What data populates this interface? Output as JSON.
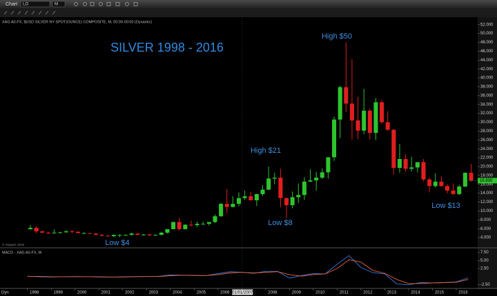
{
  "toolbar": {
    "title": "Chart",
    "symbol": "LO",
    "interval": "M"
  },
  "footer": "Dyn",
  "chart_data": {
    "type": "candlestick",
    "header": "XAG A0-FX, $USD SILVER NY SPOT(OUNCE) COMPOSITE, M, 00:00-00:00 (Dynamic)",
    "title": "SILVER 1998 - 2016",
    "copyright": "© eSignal, 2016",
    "annotations": [
      "High $50",
      "High $21",
      "Low $8",
      "Low $13",
      "Low $4"
    ],
    "last_value_label": "16.830",
    "up_color": "#2ec42e",
    "down_color": "#e01e1e",
    "xlim": [
      1996.85,
      2016.9
    ],
    "xticks": [
      1998,
      1999,
      2000,
      2001,
      2002,
      2003,
      2004,
      2005,
      2006,
      {
        "value": 2007,
        "label": "01/01/2007"
      },
      2008,
      2009,
      2010,
      2011,
      2012,
      2013,
      2014,
      2015,
      2016
    ],
    "ylim": [
      2,
      53.2
    ],
    "yticks": [
      {
        "value": 4,
        "label": "4.000"
      },
      {
        "value": 6,
        "label": "6.000"
      },
      {
        "value": 8,
        "label": "8.000"
      },
      {
        "value": 10,
        "label": "10.000"
      },
      {
        "value": 12,
        "label": "12.000"
      },
      {
        "value": 14,
        "label": "14.000"
      },
      {
        "value": 16,
        "label": "16.000"
      },
      {
        "value": 18,
        "label": "18.000"
      },
      {
        "value": 20,
        "label": "20.000"
      },
      {
        "value": 22,
        "label": "22.000"
      },
      {
        "value": 24,
        "label": "24.000"
      },
      {
        "value": 26,
        "label": "26.000"
      },
      {
        "value": 28,
        "label": "28.000"
      },
      {
        "value": 30,
        "label": "30.000"
      },
      {
        "value": 32,
        "label": "32.000"
      },
      {
        "value": 34,
        "label": "34.000"
      },
      {
        "value": 36,
        "label": "36.000"
      },
      {
        "value": 38,
        "label": "38.000"
      },
      {
        "value": 40,
        "label": "40.000"
      },
      {
        "value": 42,
        "label": "42.000"
      },
      {
        "value": 44,
        "label": "44.000"
      },
      {
        "value": 46,
        "label": "46.000"
      },
      {
        "value": 48,
        "label": "48.000"
      },
      {
        "value": 50,
        "label": "50.000"
      },
      {
        "value": 52,
        "label": "52.000"
      }
    ],
    "x": [
      1998,
      1998.25,
      1998.5,
      1998.75,
      1999,
      1999.25,
      1999.5,
      1999.75,
      2000,
      2000.25,
      2000.5,
      2000.75,
      2001,
      2001.25,
      2001.5,
      2001.75,
      2002,
      2002.25,
      2002.5,
      2002.75,
      2003,
      2003.25,
      2003.5,
      2003.75,
      2004,
      2004.25,
      2004.5,
      2004.75,
      2005,
      2005.25,
      2005.5,
      2005.75,
      2006,
      2006.25,
      2006.5,
      2006.75,
      2007,
      2007.25,
      2007.5,
      2007.75,
      2008,
      2008.25,
      2008.5,
      2008.75,
      2009,
      2009.25,
      2009.5,
      2009.75,
      2010,
      2010.25,
      2010.5,
      2010.75,
      2011,
      2011.25,
      2011.5,
      2011.75,
      2012,
      2012.25,
      2012.5,
      2012.75,
      2013,
      2013.25,
      2013.5,
      2013.75,
      2014,
      2014.25,
      2014.5,
      2014.75,
      2015,
      2015.25,
      2015.5,
      2015.75,
      2016,
      2016.25,
      2016.5
    ],
    "open": [
      5.9,
      6.2,
      5.4,
      5.1,
      5.0,
      5.1,
      5.2,
      5.4,
      5.3,
      5.0,
      5.0,
      4.9,
      4.6,
      4.4,
      4.3,
      4.6,
      4.6,
      4.6,
      4.9,
      4.6,
      4.7,
      4.5,
      4.6,
      5.1,
      5.9,
      7.5,
      5.9,
      6.9,
      6.8,
      7.1,
      7.1,
      7.5,
      8.8,
      11.6,
      10.9,
      11.6,
      12.9,
      13.3,
      12.4,
      13.8,
      14.8,
      17.3,
      17.5,
      12.9,
      11.3,
      13.1,
      13.6,
      16.6,
      16.9,
      17.5,
      18.7,
      22.1,
      30.6,
      37.9,
      34.2,
      30.4,
      28.1,
      32.6,
      27.6,
      34.5,
      30.0,
      28.3,
      19.7,
      21.7,
      19.5,
      19.8,
      21.0,
      17.1,
      15.6,
      16.6,
      15.6,
      14.6,
      13.8,
      15.5,
      18.6
    ],
    "high": [
      6.8,
      6.5,
      5.6,
      5.3,
      5.8,
      5.3,
      5.7,
      5.7,
      5.5,
      5.2,
      5.1,
      5.0,
      4.8,
      4.6,
      4.7,
      4.7,
      4.7,
      5.1,
      5.0,
      4.8,
      4.9,
      4.7,
      5.3,
      5.9,
      7.6,
      8.4,
      7.0,
      7.8,
      7.6,
      7.6,
      7.5,
      9.2,
      11.8,
      14.9,
      13.3,
      14.2,
      14.6,
      14.3,
      13.9,
      15.8,
      20.0,
      18.6,
      19.5,
      13.0,
      14.4,
      16.2,
      17.6,
      19.4,
      18.8,
      19.6,
      22.1,
      31.3,
      38.2,
      48.0,
      44.2,
      35.7,
      37.5,
      33.0,
      35.4,
      35.0,
      32.5,
      28.4,
      25.1,
      22.8,
      22.2,
      21.0,
      21.7,
      17.5,
      18.5,
      17.8,
      16.0,
      16.2,
      15.9,
      18.7,
      20.6
    ],
    "low": [
      5.8,
      5.0,
      5.0,
      4.8,
      4.9,
      4.9,
      5.1,
      5.0,
      5.0,
      4.9,
      4.8,
      4.6,
      4.3,
      4.3,
      4.1,
      4.1,
      4.4,
      4.5,
      4.5,
      4.4,
      4.4,
      4.4,
      4.6,
      4.9,
      5.9,
      5.5,
      5.8,
      6.5,
      6.4,
      6.9,
      6.7,
      7.3,
      8.7,
      9.5,
      10.8,
      11.0,
      12.5,
      12.5,
      11.1,
      13.4,
      14.7,
      16.0,
      10.8,
      8.4,
      10.6,
      11.8,
      12.5,
      16.6,
      14.6,
      17.2,
      17.3,
      21.3,
      26.4,
      32.3,
      26.1,
      26.2,
      27.3,
      26.1,
      26.0,
      29.7,
      28.0,
      18.2,
      18.6,
      18.8,
      18.9,
      18.7,
      16.7,
      14.2,
      15.3,
      15.5,
      14.0,
      13.6,
      13.6,
      15.4,
      16.6
    ],
    "close": [
      6.2,
      5.4,
      5.1,
      5.0,
      5.1,
      5.2,
      5.4,
      5.3,
      5.0,
      5.0,
      4.9,
      4.6,
      4.4,
      4.3,
      4.6,
      4.6,
      4.6,
      4.9,
      4.6,
      4.7,
      4.5,
      4.6,
      5.1,
      5.9,
      7.5,
      5.9,
      6.9,
      6.8,
      7.1,
      7.1,
      7.5,
      8.8,
      11.6,
      10.9,
      11.6,
      12.9,
      13.3,
      12.4,
      13.8,
      14.8,
      17.3,
      17.5,
      12.9,
      11.3,
      13.1,
      13.6,
      16.6,
      16.9,
      17.5,
      18.7,
      22.1,
      30.6,
      37.9,
      34.2,
      30.4,
      28.1,
      32.6,
      27.6,
      34.5,
      30.0,
      28.3,
      19.7,
      21.7,
      19.5,
      19.8,
      21.0,
      17.1,
      15.6,
      16.6,
      15.6,
      14.6,
      13.8,
      15.5,
      18.6,
      16.83
    ],
    "macd": {
      "title": "MACD - XAG A0-FX, M",
      "ylim": [
        -3.5,
        8.5
      ],
      "yticks": [
        {
          "value": 7.5,
          "label": "7.50"
        },
        {
          "value": 5,
          "label": "5.00"
        },
        {
          "value": 2.5,
          "label": "2.50"
        },
        {
          "value": -2.5,
          "label": "-2.50"
        }
      ],
      "x": [
        1998,
        1998.5,
        1999,
        1999.5,
        2000,
        2000.5,
        2001,
        2001.5,
        2002,
        2002.5,
        2003,
        2003.5,
        2004,
        2004.5,
        2005,
        2005.5,
        2006,
        2006.5,
        2007,
        2007.5,
        2008,
        2008.5,
        2009,
        2009.5,
        2010,
        2010.5,
        2011,
        2011.5,
        2012,
        2012.5,
        2013,
        2013.5,
        2014,
        2014.5,
        2015,
        2015.5,
        2016,
        2016.5
      ],
      "series": [
        {
          "color": "#3a78e0",
          "values": [
            0.1,
            -0.1,
            -0.15,
            -0.05,
            0.0,
            -0.05,
            -0.15,
            -0.2,
            -0.1,
            0.0,
            0.0,
            0.05,
            0.5,
            0.4,
            0.3,
            0.3,
            0.9,
            1.5,
            1.3,
            1.0,
            1.6,
            1.6,
            -0.5,
            0.3,
            0.9,
            0.8,
            3.8,
            6.5,
            2.8,
            1.2,
            0.8,
            -2.3,
            -2.6,
            -1.9,
            -2.0,
            -1.9,
            -1.7,
            -0.4
          ]
        },
        {
          "color": "#e8643a",
          "values": [
            0.05,
            0.05,
            -0.1,
            -0.1,
            -0.05,
            -0.05,
            -0.1,
            -0.15,
            -0.15,
            -0.05,
            0.0,
            0.0,
            0.25,
            0.4,
            0.35,
            0.3,
            0.6,
            1.1,
            1.3,
            1.1,
            1.3,
            1.5,
            0.6,
            0.1,
            0.6,
            0.8,
            2.5,
            5.2,
            4.5,
            1.9,
            1.0,
            -0.9,
            -2.2,
            -2.2,
            -2.0,
            -1.9,
            -1.8,
            -0.9
          ]
        }
      ]
    }
  }
}
